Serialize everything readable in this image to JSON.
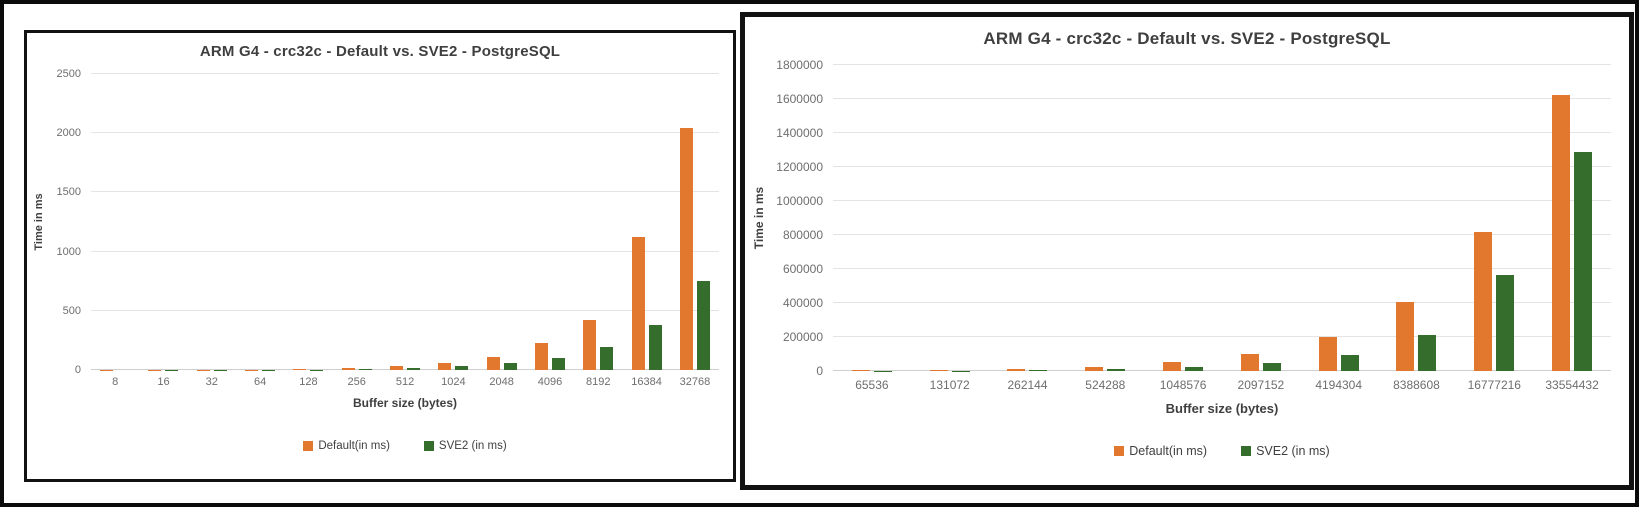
{
  "page": {
    "background_color": "#ffffff",
    "frame_color": "#0b0b0b"
  },
  "colors": {
    "default_series": "#e2782e",
    "sve2_series": "#356e2c",
    "gridline": "#e4e4e4",
    "tick_text": "#6e6e6e",
    "title_text": "#3f3f3f"
  },
  "chart_data": [
    {
      "type": "bar",
      "title": "ARM G4 - crc32c - Default vs. SVE2 - PostgreSQL",
      "xlabel": "Buffer size (bytes)",
      "ylabel": "Time in ms",
      "ylim": [
        0,
        2500
      ],
      "ytick_step": 500,
      "grid": true,
      "legend_position": "bottom",
      "categories": [
        "8",
        "16",
        "32",
        "64",
        "128",
        "256",
        "512",
        "1024",
        "2048",
        "4096",
        "8192",
        "16384",
        "32768"
      ],
      "series": [
        {
          "name": "Default(in ms)",
          "color": "#e2782e",
          "values": [
            1,
            1,
            2,
            4,
            9,
            16,
            30,
            62,
            112,
            225,
            420,
            1120,
            2040
          ]
        },
        {
          "name": "SVE2 (in ms)",
          "color": "#356e2c",
          "values": [
            0.5,
            1,
            1,
            2,
            4,
            9,
            18,
            35,
            60,
            103,
            195,
            380,
            750
          ]
        }
      ]
    },
    {
      "type": "bar",
      "title": "ARM G4 - crc32c - Default vs. SVE2 - PostgreSQL",
      "xlabel": "Buffer size (bytes)",
      "ylabel": "Time in ms",
      "ylim": [
        0,
        1800000
      ],
      "ytick_step": 200000,
      "grid": true,
      "legend_position": "bottom",
      "categories": [
        "65536",
        "131072",
        "262144",
        "524288",
        "1048576",
        "2097152",
        "4194304",
        "8388608",
        "16777216",
        "33554432"
      ],
      "series": [
        {
          "name": "Default(in ms)",
          "color": "#e2782e",
          "values": [
            3200,
            6400,
            13000,
            26000,
            52000,
            103000,
            203000,
            406000,
            815000,
            1625000
          ]
        },
        {
          "name": "SVE2 (in ms)",
          "color": "#356e2c",
          "values": [
            1200,
            2600,
            5500,
            11000,
            21000,
            50000,
            95000,
            210000,
            565000,
            1290000
          ]
        }
      ]
    }
  ]
}
